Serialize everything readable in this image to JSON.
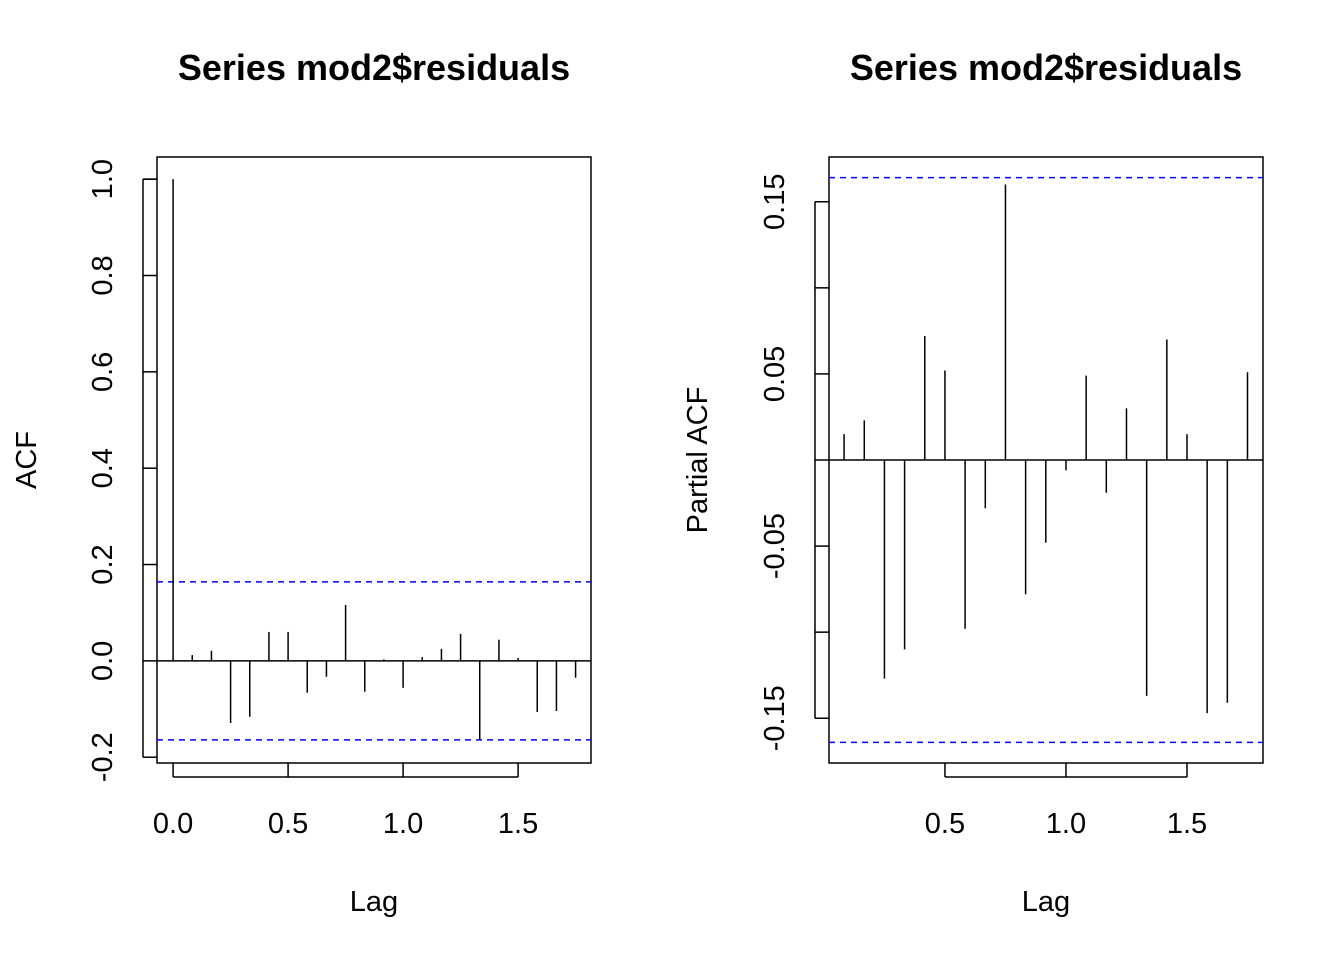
{
  "chart_data": [
    {
      "type": "bar",
      "title": "Series  mod2$residuals",
      "xlabel": "Lag",
      "ylabel": "ACF",
      "xlim": [
        -0.07,
        1.817
      ],
      "ylim": [
        -0.212,
        1.046
      ],
      "xticks": [
        "0.0",
        "0.5",
        "1.0",
        "1.5"
      ],
      "yticks": [
        "-0.2",
        "0.0",
        "0.2",
        "0.4",
        "0.6",
        "0.8",
        "1.0"
      ],
      "x": [
        0,
        0.0833,
        0.1667,
        0.25,
        0.3333,
        0.4167,
        0.5,
        0.5833,
        0.6667,
        0.75,
        0.8333,
        0.9167,
        1.0,
        1.0833,
        1.1667,
        1.25,
        1.3333,
        1.4167,
        1.5,
        1.5833,
        1.6667,
        1.75
      ],
      "values": [
        1.0,
        0.012,
        0.021,
        -0.129,
        -0.116,
        0.06,
        0.06,
        -0.066,
        -0.033,
        0.116,
        -0.064,
        0.003,
        -0.056,
        0.008,
        0.025,
        0.056,
        -0.164,
        0.044,
        0.006,
        -0.106,
        -0.104,
        -0.035
      ],
      "ci": 0.164,
      "ci_color": "#0000ff"
    },
    {
      "type": "bar",
      "title": "Series  mod2$residuals",
      "xlabel": "Lag",
      "ylabel": "Partial ACF",
      "xlim": [
        0.021,
        1.814
      ],
      "ylim": [
        -0.176,
        0.176
      ],
      "xticks": [
        "0.5",
        "1.0",
        "1.5"
      ],
      "yticks": [
        "-0.15",
        "-0.05",
        "0.05",
        "0.15"
      ],
      "x": [
        0.0833,
        0.1667,
        0.25,
        0.3333,
        0.4167,
        0.5,
        0.5833,
        0.6667,
        0.75,
        0.8333,
        0.9167,
        1.0,
        1.0833,
        1.1667,
        1.25,
        1.3333,
        1.4167,
        1.5,
        1.5833,
        1.6667,
        1.75
      ],
      "values": [
        0.015,
        0.023,
        -0.127,
        -0.11,
        0.072,
        0.052,
        -0.098,
        -0.028,
        0.16,
        -0.078,
        -0.048,
        -0.006,
        0.049,
        -0.019,
        0.03,
        -0.137,
        0.07,
        0.015,
        -0.147,
        -0.141,
        0.051
      ],
      "ci": 0.164,
      "ci_color": "#0000ff"
    }
  ]
}
